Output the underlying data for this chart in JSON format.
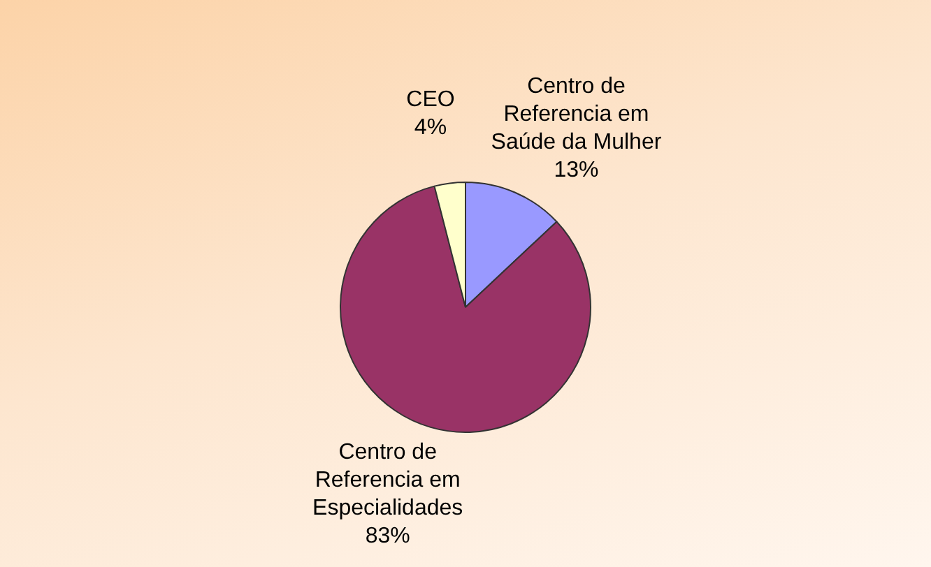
{
  "chart_data": {
    "type": "pie",
    "categories": [
      "Centro de Referencia em Saúde da Mulher",
      "Centro de Referencia em Especialidades",
      "CEO"
    ],
    "values": [
      13,
      83,
      4
    ],
    "value_labels": [
      "13%",
      "83%",
      "4%"
    ],
    "colors": [
      "#9999ff",
      "#993366",
      "#ffffcc"
    ],
    "legend": false
  }
}
